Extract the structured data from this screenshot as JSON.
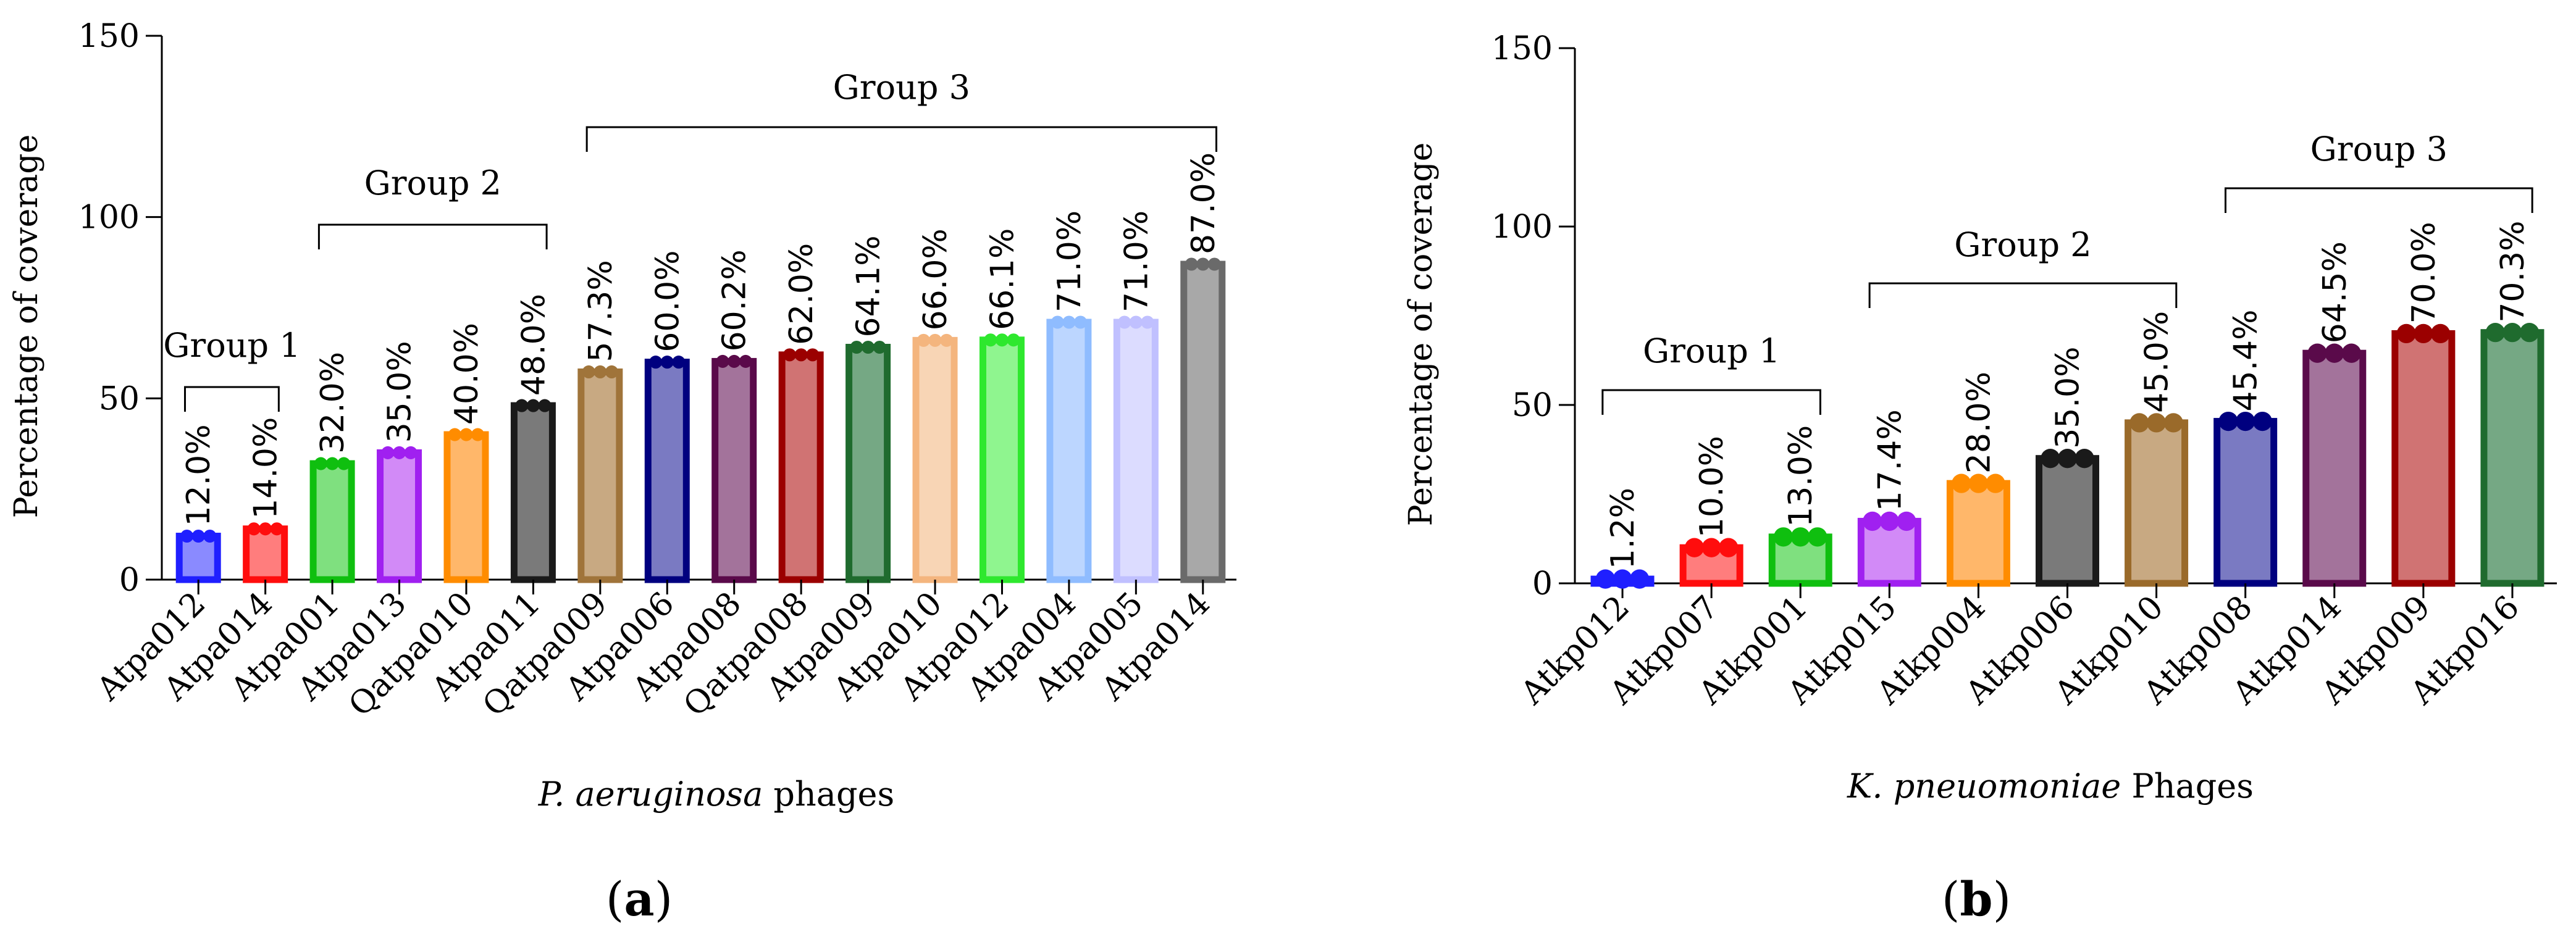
{
  "chart_data": [
    {
      "type": "bar",
      "panel_label": "a",
      "ylabel": "Percentage of coverage",
      "xlabel_italic": "P. aeruginosa",
      "xlabel_rest": " phages",
      "ylim": [
        0,
        150
      ],
      "yticks": [
        0,
        50,
        100,
        150
      ],
      "categories": [
        "Atpa012",
        "Atpa014",
        "Atpa001",
        "Atpa013",
        "Qatpa010",
        "Atpa011",
        "Qatpa009",
        "Atpa006",
        "Atpa008",
        "Qatpa008",
        "Atpa009",
        "Atpa010",
        "Atpa012",
        "Atpa004",
        "Atpa005",
        "Atpa014"
      ],
      "values": [
        12.0,
        14.0,
        32.0,
        35.0,
        40.0,
        48.0,
        57.3,
        60.0,
        60.2,
        62.0,
        64.1,
        66.0,
        66.1,
        71.0,
        71.0,
        87.0
      ],
      "value_labels": [
        "12.0%",
        "14.0%",
        "32.0%",
        "35.0%",
        "40.0%",
        "48.0%",
        "57.3%",
        "60.0%",
        "60.2%",
        "62.0%",
        "64.1%",
        "66.0%",
        "66.1%",
        "71.0%",
        "71.0%",
        "87.0%"
      ],
      "colors": [
        "#1f1fff",
        "#ff0d0d",
        "#0fbf0f",
        "#a020f0",
        "#ff8c00",
        "#1a1a1a",
        "#a0743a",
        "#00007f",
        "#5a0a4a",
        "#9b0000",
        "#1f6b2e",
        "#f4b57e",
        "#2ee82e",
        "#8fbcff",
        "#c0c0ff",
        "#6a6a6a"
      ],
      "fills": [
        "#8a8aff",
        "#ff7d7d",
        "#7fe07f",
        "#d28af7",
        "#ffb76a",
        "#7a7a7a",
        "#c8a982",
        "#7a7ac2",
        "#a3739b",
        "#d07373",
        "#75a884",
        "#f8d5b5",
        "#8ff58f",
        "#bcd6ff",
        "#dcdcff",
        "#a8a8a8"
      ],
      "groups": [
        {
          "label": "Group 1",
          "start": 0,
          "end": 1
        },
        {
          "label": "Group 2",
          "start": 2,
          "end": 5
        },
        {
          "label": "Group 3",
          "start": 6,
          "end": 15
        }
      ]
    },
    {
      "type": "bar",
      "panel_label": "b",
      "ylabel": "Percentage of coverage",
      "xlabel_italic": "K. pneuomoniae",
      "xlabel_rest": " Phages",
      "ylim": [
        0,
        150
      ],
      "yticks": [
        0,
        50,
        100,
        150
      ],
      "categories": [
        "Atkp012",
        "Atkp007",
        "Atkp001",
        "Atkp015",
        "Atkp004",
        "Atkp006",
        "Atkp010",
        "Atkp008",
        "Atkp014",
        "Atkp009",
        "Atkp016"
      ],
      "values": [
        1.2,
        10.0,
        13.0,
        17.4,
        28.0,
        35.0,
        45.0,
        45.4,
        64.5,
        70.0,
        70.3
      ],
      "value_labels": [
        "1.2%",
        "10.0%",
        "13.0%",
        "17.4%",
        "28.0%",
        "35.0%",
        "45.0%",
        "45.4%",
        "64.5%",
        "70.0%",
        "70.3%"
      ],
      "colors": [
        "#1f1fff",
        "#ff0d0d",
        "#0fbf0f",
        "#a020f0",
        "#ff8c00",
        "#1a1a1a",
        "#9a6a2a",
        "#00007f",
        "#5a0a4a",
        "#9b0000",
        "#1f6b2e"
      ],
      "fills": [
        "#8a8aff",
        "#ff7d7d",
        "#7fe07f",
        "#d28af7",
        "#ffb76a",
        "#7a7a7a",
        "#c8a982",
        "#7a7ac2",
        "#a3739b",
        "#d07373",
        "#75a884"
      ],
      "groups": [
        {
          "label": "Group 1",
          "start": 0,
          "end": 2
        },
        {
          "label": "Group 2",
          "start": 3,
          "end": 6
        },
        {
          "label": "Group 3",
          "start": 7,
          "end": 10
        }
      ]
    }
  ]
}
